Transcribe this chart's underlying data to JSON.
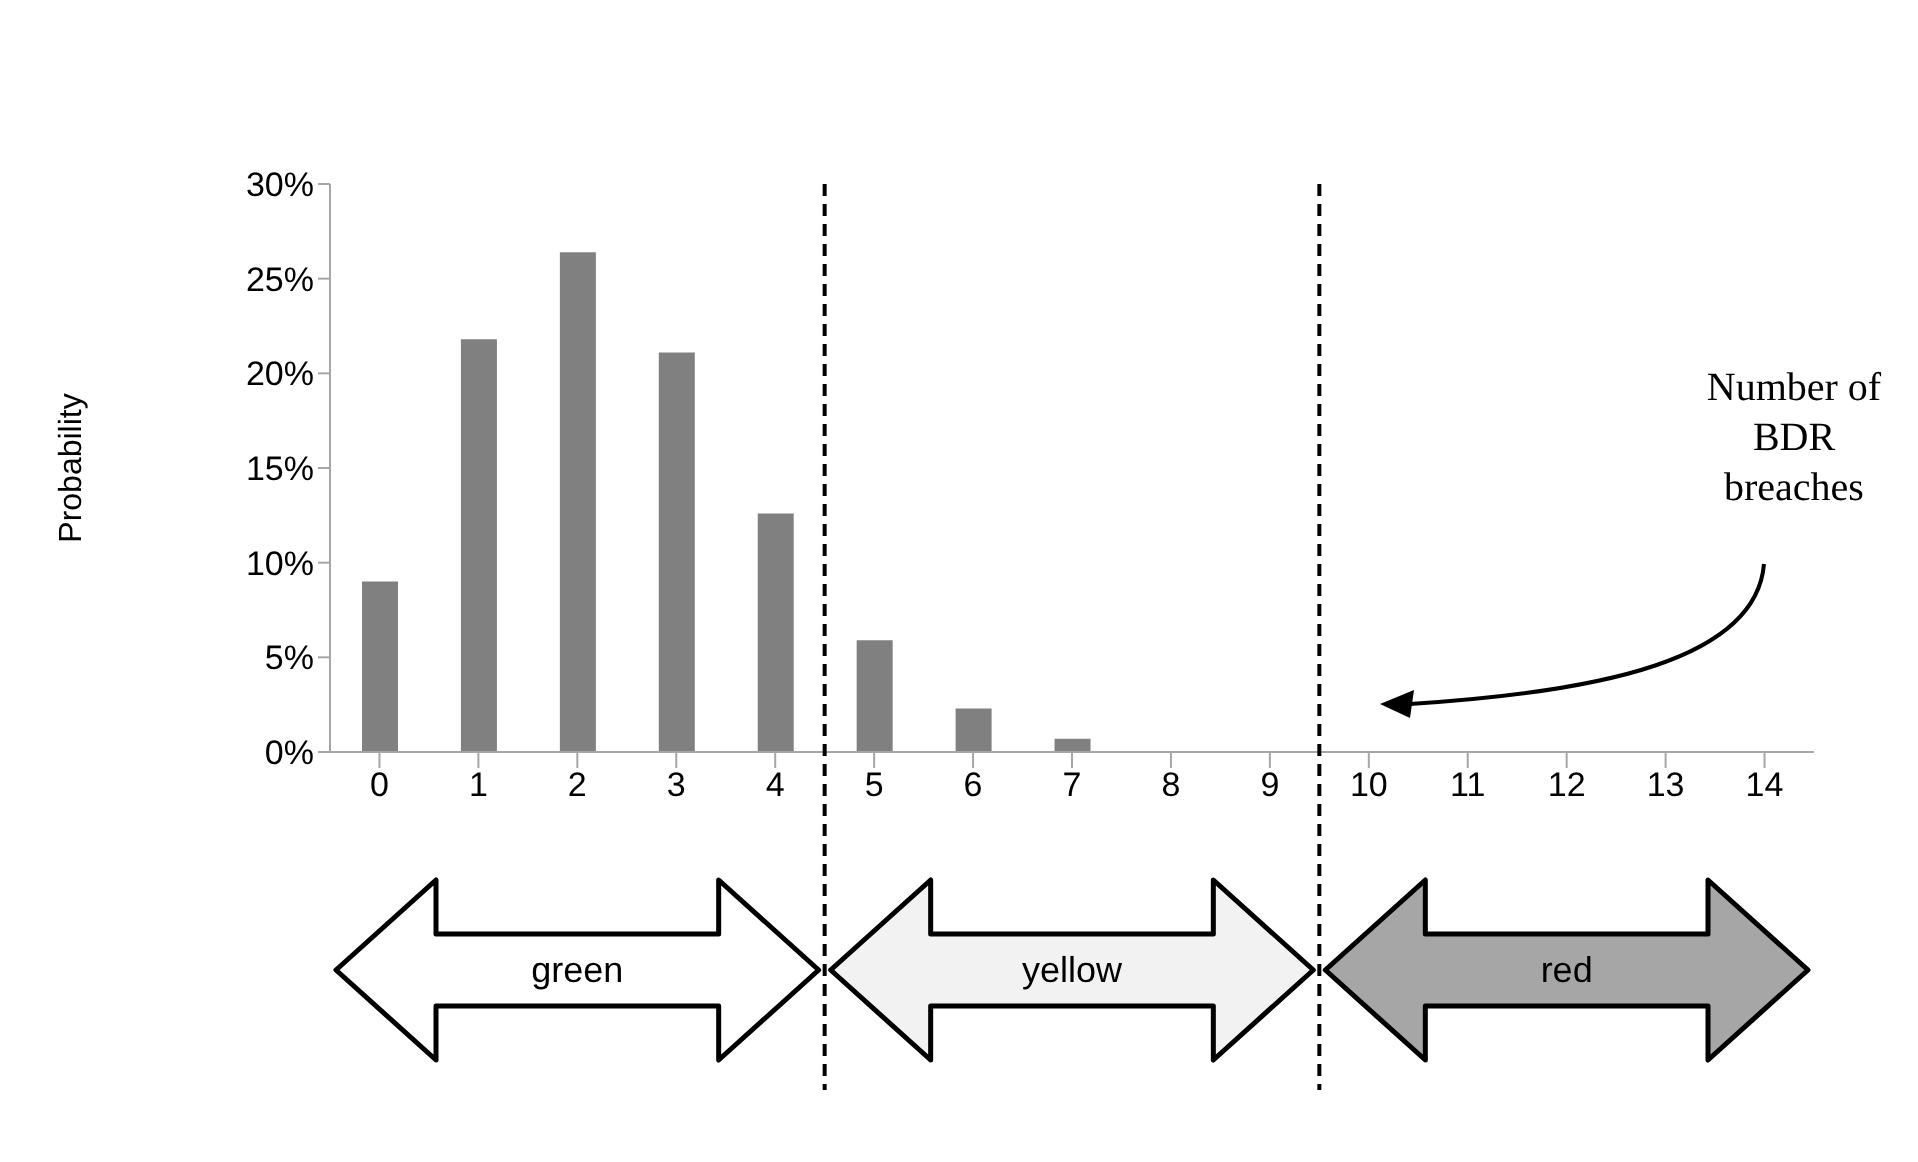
{
  "chart_data": {
    "type": "bar",
    "ylabel": "Probability",
    "x": [
      0,
      1,
      2,
      3,
      4,
      5,
      6,
      7,
      8,
      9,
      10,
      11,
      12,
      13,
      14
    ],
    "values": [
      9.0,
      21.8,
      26.4,
      21.1,
      12.6,
      5.9,
      2.3,
      0.7,
      0,
      0,
      0,
      0,
      0,
      0,
      0
    ],
    "color": "#808080",
    "xlim": [
      -0.5,
      14.5
    ],
    "xticks": [
      0,
      1,
      2,
      3,
      4,
      5,
      6,
      7,
      8,
      9,
      10,
      11,
      12,
      13,
      14
    ],
    "ylim": [
      0,
      30
    ],
    "yticks": [
      {
        "value": 0,
        "label": "0%"
      },
      {
        "value": 5,
        "label": "5%"
      },
      {
        "value": 10,
        "label": "10%"
      },
      {
        "value": 15,
        "label": "15%"
      },
      {
        "value": 20,
        "label": "20%"
      },
      {
        "value": 25,
        "label": "25%"
      },
      {
        "value": 30,
        "label": "30%"
      }
    ],
    "ref_lines": [
      {
        "axis": "x",
        "value": 4.5,
        "line_style": "dashed",
        "color": "#000000"
      },
      {
        "axis": "x",
        "value": 9.5,
        "line_style": "dashed",
        "color": "#000000"
      }
    ],
    "annotations": [
      "Number of BDR breaches",
      "green",
      "yellow",
      "red"
    ],
    "grid": false,
    "legend": false
  }
}
